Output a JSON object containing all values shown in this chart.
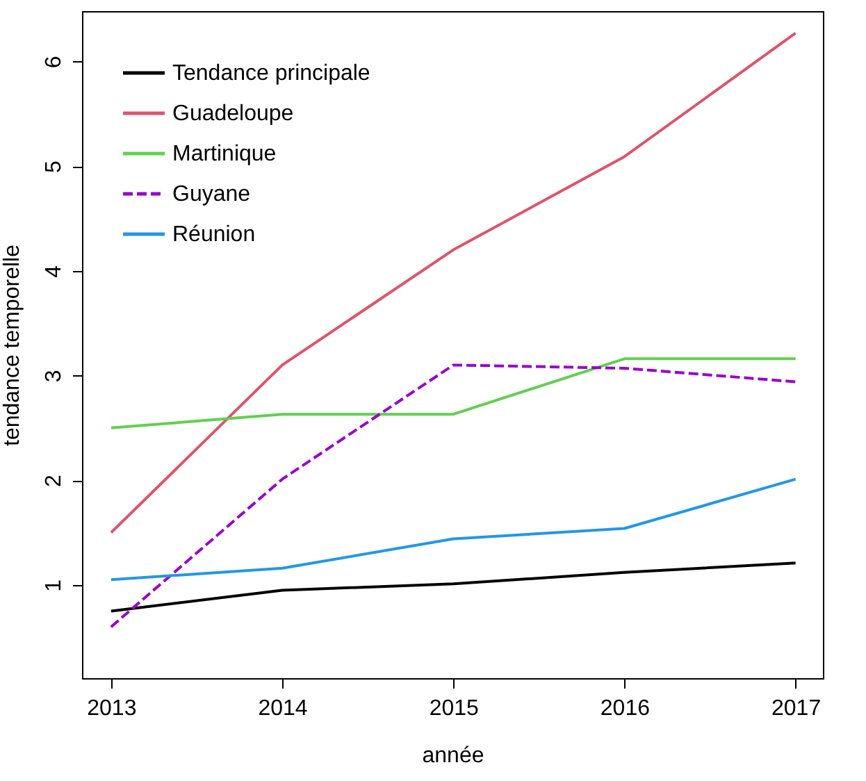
{
  "chart_data": {
    "type": "line",
    "xlabel": "année",
    "ylabel": "tendance temporelle",
    "x": [
      2013,
      2014,
      2015,
      2016,
      2017
    ],
    "xlim": [
      2012.83,
      2017.16
    ],
    "xticks": [
      2013,
      2014,
      2015,
      2016,
      2017
    ],
    "ylim": [
      0.11,
      6.48
    ],
    "yticks": [
      1,
      2,
      3,
      4,
      5,
      6
    ],
    "grid": false,
    "legend": "top left",
    "marker": "none",
    "series": [
      {
        "name": "Tendance principale",
        "color": "#000000",
        "line_style": "solid",
        "values": [
          0.75,
          0.95,
          1.01,
          1.12,
          1.21
        ]
      },
      {
        "name": "Guadeloupe",
        "color": "#df536b",
        "line_style": "solid",
        "values": [
          1.5,
          3.1,
          4.2,
          5.09,
          6.27
        ]
      },
      {
        "name": "Martinique",
        "color": "#61d04f",
        "line_style": "solid",
        "values": [
          2.5,
          2.63,
          2.63,
          3.16,
          3.16
        ]
      },
      {
        "name": "Guyane",
        "color": "#9900cc",
        "line_style": "dashed",
        "values": [
          0.6,
          2.01,
          3.1,
          3.07,
          2.94
        ]
      },
      {
        "name": "Réunion",
        "color": "#2297e6",
        "line_style": "solid",
        "values": [
          1.05,
          1.16,
          1.44,
          1.54,
          2.01
        ]
      }
    ]
  }
}
